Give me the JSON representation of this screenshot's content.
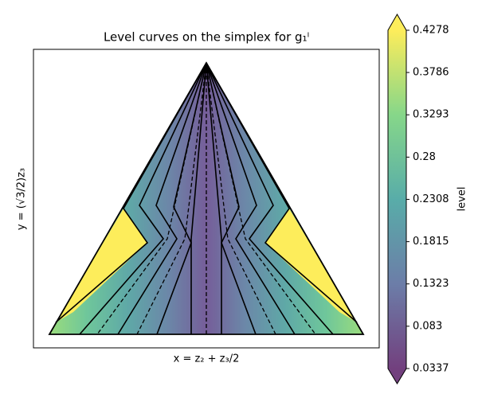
{
  "chart_data": {
    "type": "contour",
    "title": "Level curves on the simplex for g₁ˡ",
    "x_label": "x = z₂ + z₃/2",
    "y_label": "y = (√3/2)z₃",
    "colorbar_label": "level",
    "colormap": "viridis",
    "colorbar_lim": [
      0.0337,
      0.4278
    ],
    "colorbar_ticks": [
      0.0337,
      0.083,
      0.1323,
      0.1815,
      0.2308,
      0.28,
      0.3293,
      0.3786,
      0.4278
    ]
  }
}
